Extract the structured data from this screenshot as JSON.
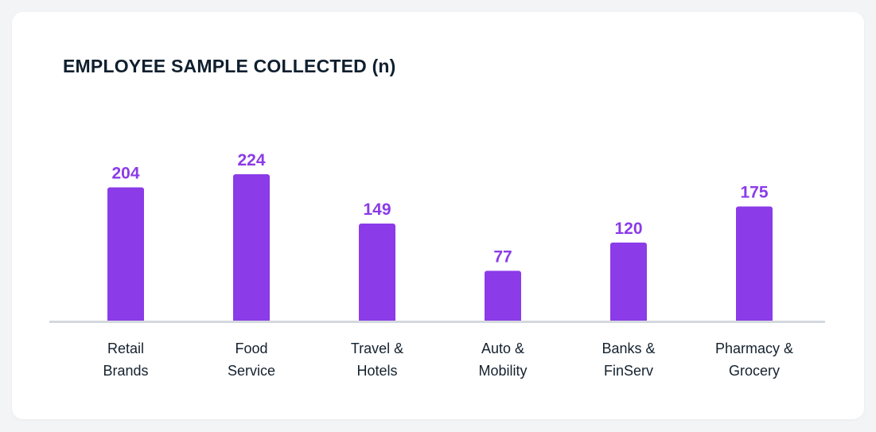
{
  "chart_data": {
    "type": "bar",
    "title": "EMPLOYEE SAMPLE COLLECTED (n)",
    "categories": [
      [
        "Retail",
        "Brands"
      ],
      [
        "Food",
        "Service"
      ],
      [
        "Travel &",
        "Hotels"
      ],
      [
        "Auto &",
        "Mobility"
      ],
      [
        "Banks &",
        "FinServ"
      ],
      [
        "Pharmacy &",
        "Grocery"
      ]
    ],
    "values": [
      204,
      224,
      149,
      77,
      120,
      175
    ],
    "xlabel": "",
    "ylabel": "",
    "ylim": [
      0,
      224
    ],
    "grid": false,
    "legend": "none",
    "data_labels": true,
    "colors": {
      "bar": "#8b3be8",
      "value_label": "#8b3be8",
      "baseline": "#d3d8de",
      "title": "#0f1f2e",
      "category_label": "#14212e",
      "card_background": "#ffffff",
      "page_background": "#f3f4f6"
    }
  }
}
